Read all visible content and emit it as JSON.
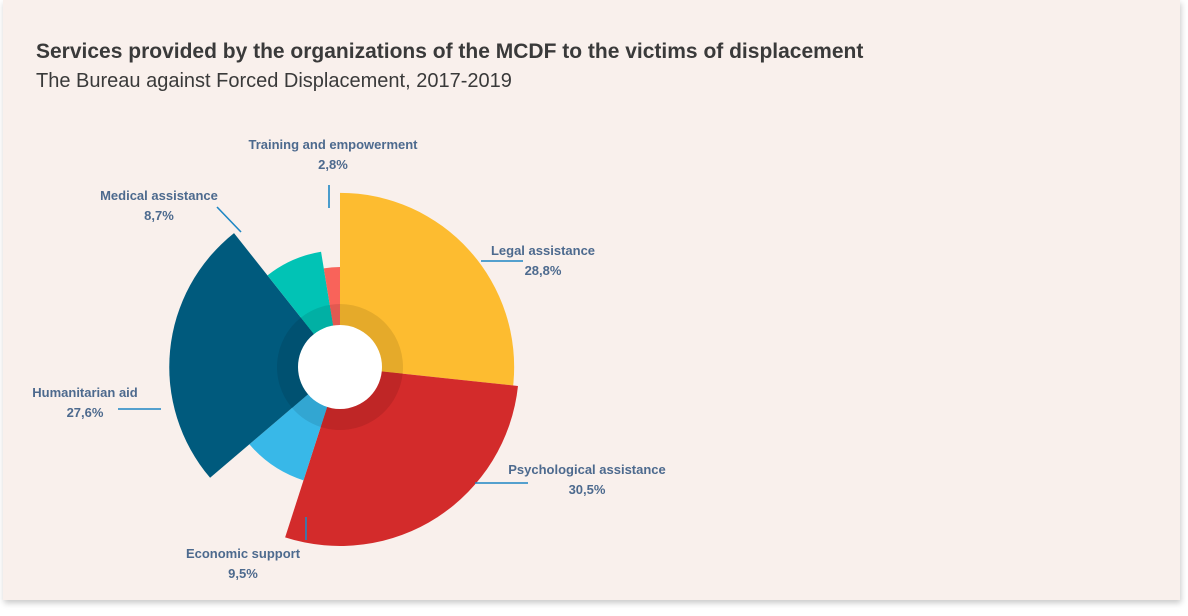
{
  "chart_data": {
    "type": "pie",
    "title": "Services provided by the organizations of the MCDF to the victims of displacement",
    "subtitle": "The Bureau against Forced Displacement, 2017-2019",
    "slices": [
      {
        "label": "Legal assistance",
        "value_label": "28,8%",
        "value": 28.8,
        "color": "#fdbc30"
      },
      {
        "label": "Psychological assistance",
        "value_label": "30,5%",
        "value": 30.5,
        "color": "#d32b2b"
      },
      {
        "label": "Economic support",
        "value_label": "9,5%",
        "value": 9.5,
        "color": "#38b8e8"
      },
      {
        "label": "Humanitarian aid",
        "value_label": "27,6%",
        "value": 27.6,
        "color": "#005a7d"
      },
      {
        "label": "Medical assistance",
        "value_label": "8,7%",
        "value": 8.7,
        "color": "#01c3b5"
      },
      {
        "label": "Training and empowerment",
        "value_label": "2,8%",
        "value": 2.8,
        "color": "#f9635a"
      }
    ],
    "leader_color": "#1d86c4"
  }
}
